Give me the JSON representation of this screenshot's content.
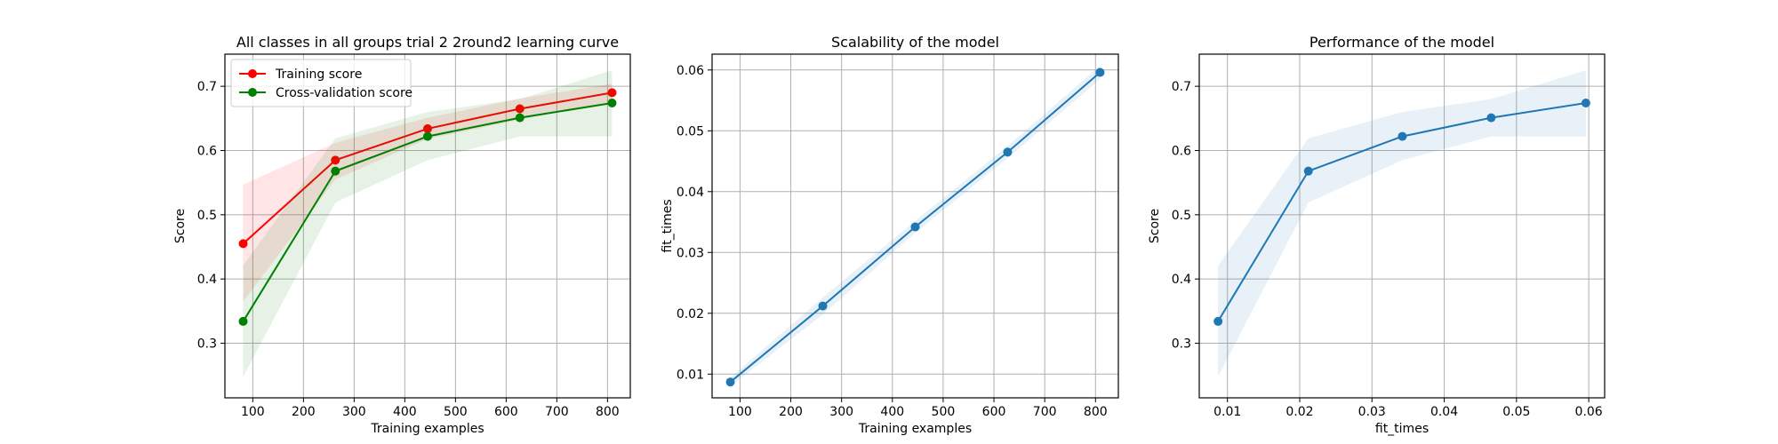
{
  "chart_data": [
    {
      "type": "line",
      "title": "All classes in all groups trial 2 2round2 learning curve",
      "xlabel": "Training examples",
      "ylabel": "Score",
      "xlim": [
        45,
        845
      ],
      "ylim": [
        0.215,
        0.75
      ],
      "xticks": [
        100,
        200,
        300,
        400,
        500,
        600,
        700,
        800
      ],
      "yticks": [
        0.3,
        0.4,
        0.5,
        0.6,
        0.7
      ],
      "grid": true,
      "legend": "upper-left",
      "x": [
        81,
        263,
        445,
        627,
        809
      ],
      "series": [
        {
          "name": "Training score",
          "color": "#ff0000",
          "values": [
            0.455,
            0.585,
            0.634,
            0.665,
            0.69
          ],
          "band_lower": [
            0.365,
            0.555,
            0.618,
            0.648,
            0.676
          ],
          "band_upper": [
            0.547,
            0.612,
            0.651,
            0.681,
            0.704
          ]
        },
        {
          "name": "Cross-validation score",
          "color": "#008000",
          "values": [
            0.334,
            0.568,
            0.622,
            0.651,
            0.674
          ],
          "band_lower": [
            0.248,
            0.519,
            0.585,
            0.622,
            0.622
          ],
          "band_upper": [
            0.421,
            0.619,
            0.66,
            0.68,
            0.725
          ]
        }
      ]
    },
    {
      "type": "line",
      "title": "Scalability of the model",
      "xlabel": "Training examples",
      "ylabel": "fit_times",
      "xlim": [
        45,
        845
      ],
      "ylim": [
        0.0061,
        0.0626
      ],
      "xticks": [
        100,
        200,
        300,
        400,
        500,
        600,
        700,
        800
      ],
      "yticks": [
        0.01,
        0.02,
        0.03,
        0.04,
        0.05,
        0.06
      ],
      "grid": true,
      "x": [
        81,
        263,
        445,
        627,
        809
      ],
      "series": [
        {
          "name": "",
          "color": "#1f77b4",
          "values": [
            0.0087,
            0.0212,
            0.0342,
            0.0465,
            0.0596
          ],
          "band_lower": [
            0.008,
            0.0198,
            0.0332,
            0.0455,
            0.0585
          ],
          "band_upper": [
            0.0094,
            0.0226,
            0.0352,
            0.0475,
            0.0607
          ]
        }
      ]
    },
    {
      "type": "line",
      "title": "Performance of the model",
      "xlabel": "fit_times",
      "ylabel": "Score",
      "xlim": [
        0.0061,
        0.0622
      ],
      "ylim": [
        0.215,
        0.75
      ],
      "xticks": [
        0.01,
        0.02,
        0.03,
        0.04,
        0.05,
        0.06
      ],
      "yticks": [
        0.3,
        0.4,
        0.5,
        0.6,
        0.7
      ],
      "grid": true,
      "x": [
        0.0087,
        0.0212,
        0.0342,
        0.0465,
        0.0596
      ],
      "series": [
        {
          "name": "",
          "color": "#1f77b4",
          "values": [
            0.334,
            0.568,
            0.622,
            0.651,
            0.674
          ],
          "band_lower": [
            0.248,
            0.519,
            0.585,
            0.622,
            0.622
          ],
          "band_upper": [
            0.421,
            0.619,
            0.66,
            0.68,
            0.725
          ]
        }
      ]
    }
  ]
}
